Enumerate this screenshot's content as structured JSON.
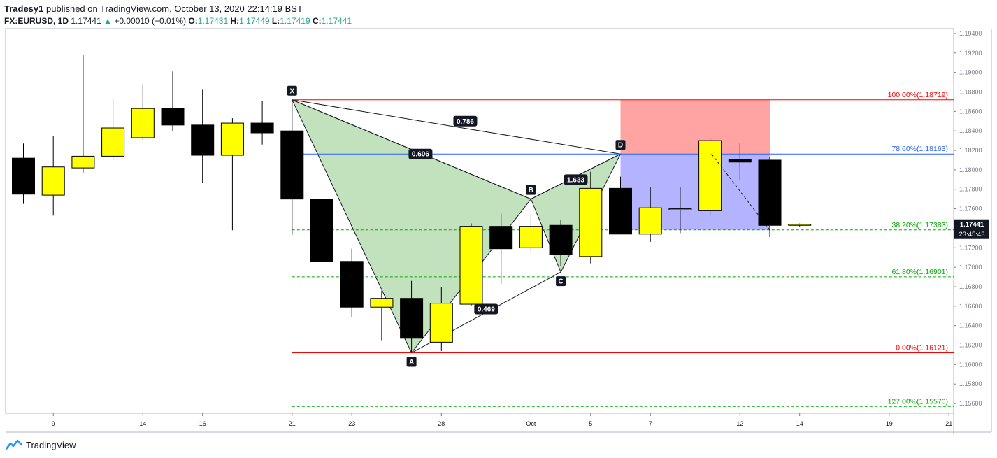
{
  "header": {
    "author": "Tradesy1",
    "published_text": "published on TradingView.com, October 13, 2020 22:14:19 BST",
    "symbol": "FX:EURUSD, 1D",
    "last": "1.17441",
    "change_icon": "triangle-up-icon",
    "change": "+0.00010 (+0.01%)",
    "o_label": "O:",
    "o_value": "1.17431",
    "h_label": "H:",
    "h_value": "1.17449",
    "l_label": "L:",
    "l_value": "1.17419",
    "c_label": "C:",
    "c_value": "1.17441"
  },
  "footer": {
    "brand": "TradingView",
    "logo_icon": "tradingview-logo-icon"
  },
  "colors": {
    "bull": "#ffff00",
    "bear": "#000000",
    "pattern_fill": "#a8d5a2",
    "fib_red": "#ff0000",
    "fib_blue": "#2962ff",
    "fib_green": "#00aa00",
    "stop_zone": "#ff9999",
    "target_zone": "#8080ff"
  },
  "chart_data": {
    "type": "candlestick",
    "symbol": "FX:EURUSD",
    "interval": "1D",
    "ylim": [
      1.155,
      1.1945
    ],
    "y_ticks": [
      "1.15600",
      "1.15800",
      "1.16000",
      "1.16200",
      "1.16400",
      "1.16600",
      "1.16800",
      "1.17000",
      "1.17200",
      "1.17400",
      "1.17600",
      "1.17800",
      "1.18000",
      "1.18200",
      "1.18400",
      "1.18600",
      "1.18800",
      "1.19000",
      "1.19200",
      "1.19400"
    ],
    "x_ticks": [
      {
        "label": "9",
        "i": 1
      },
      {
        "label": "14",
        "i": 4
      },
      {
        "label": "16",
        "i": 6
      },
      {
        "label": "21",
        "i": 9
      },
      {
        "label": "23",
        "i": 11
      },
      {
        "label": "28",
        "i": 14
      },
      {
        "label": "Oct",
        "i": 17
      },
      {
        "label": "5",
        "i": 19
      },
      {
        "label": "7",
        "i": 21
      },
      {
        "label": "12",
        "i": 24
      },
      {
        "label": "14",
        "i": 26
      },
      {
        "label": "19",
        "i": 29
      },
      {
        "label": "21",
        "i": 31
      }
    ],
    "candles": [
      {
        "o": 1.1812,
        "h": 1.1827,
        "l": 1.1765,
        "c": 1.1775
      },
      {
        "o": 1.1774,
        "h": 1.1835,
        "l": 1.1753,
        "c": 1.1803
      },
      {
        "o": 1.1802,
        "h": 1.1918,
        "l": 1.1797,
        "c": 1.1814
      },
      {
        "o": 1.1814,
        "h": 1.1873,
        "l": 1.181,
        "c": 1.1843
      },
      {
        "o": 1.1833,
        "h": 1.1888,
        "l": 1.1831,
        "c": 1.1863
      },
      {
        "o": 1.1863,
        "h": 1.1901,
        "l": 1.184,
        "c": 1.1846
      },
      {
        "o": 1.1846,
        "h": 1.1883,
        "l": 1.1787,
        "c": 1.1815
      },
      {
        "o": 1.1815,
        "h": 1.1853,
        "l": 1.1738,
        "c": 1.1848
      },
      {
        "o": 1.1848,
        "h": 1.1871,
        "l": 1.1826,
        "c": 1.1838
      },
      {
        "o": 1.184,
        "h": 1.1872,
        "l": 1.1733,
        "c": 1.177
      },
      {
        "o": 1.177,
        "h": 1.1775,
        "l": 1.169,
        "c": 1.1706
      },
      {
        "o": 1.1706,
        "h": 1.1719,
        "l": 1.1649,
        "c": 1.1659
      },
      {
        "o": 1.1659,
        "h": 1.1676,
        "l": 1.1625,
        "c": 1.1668
      },
      {
        "o": 1.1668,
        "h": 1.1686,
        "l": 1.1612,
        "c": 1.1627
      },
      {
        "o": 1.1623,
        "h": 1.168,
        "l": 1.1614,
        "c": 1.1663
      },
      {
        "o": 1.1662,
        "h": 1.1745,
        "l": 1.166,
        "c": 1.1742
      },
      {
        "o": 1.1742,
        "h": 1.1755,
        "l": 1.1683,
        "c": 1.1719
      },
      {
        "o": 1.172,
        "h": 1.1753,
        "l": 1.1715,
        "c": 1.1742
      },
      {
        "o": 1.1743,
        "h": 1.1749,
        "l": 1.1701,
        "c": 1.1713
      },
      {
        "o": 1.1711,
        "h": 1.1798,
        "l": 1.1704,
        "c": 1.1781
      },
      {
        "o": 1.1781,
        "h": 1.1793,
        "l": 1.1734,
        "c": 1.1734
      },
      {
        "o": 1.1734,
        "h": 1.1782,
        "l": 1.1726,
        "c": 1.1761
      },
      {
        "o": 1.1759,
        "h": 1.1782,
        "l": 1.1735,
        "c": 1.176
      },
      {
        "o": 1.1758,
        "h": 1.1832,
        "l": 1.1753,
        "c": 1.183
      },
      {
        "o": 1.1811,
        "h": 1.1827,
        "l": 1.179,
        "c": 1.1808
      },
      {
        "o": 1.181,
        "h": 1.1813,
        "l": 1.1731,
        "c": 1.1743
      },
      {
        "o": 1.17431,
        "h": 1.17449,
        "l": 1.17419,
        "c": 1.17441
      }
    ],
    "harmonic": {
      "points": [
        {
          "label": "X",
          "i": 9,
          "price": 1.18719
        },
        {
          "label": "A",
          "i": 13,
          "price": 1.16121
        },
        {
          "label": "B",
          "i": 17,
          "price": 1.177
        },
        {
          "label": "C",
          "i": 18,
          "price": 1.1695
        },
        {
          "label": "D",
          "i": 20,
          "price": 1.18163
        }
      ],
      "ratios": [
        {
          "label": "0.606",
          "i": 13.3,
          "price": 1.18163
        },
        {
          "label": "0.786",
          "i": 14.8,
          "price": 1.185
        },
        {
          "label": "1.633",
          "i": 18.5,
          "price": 1.179
        },
        {
          "label": "0.469",
          "i": 15.5,
          "price": 1.1657
        }
      ]
    },
    "fib_levels": [
      {
        "label": "100.00%(1.18719)",
        "price": 1.18719,
        "color": "#ff0000",
        "style": "solid"
      },
      {
        "label": "78.60%(1.18163)",
        "price": 1.18163,
        "color": "#2962ff",
        "style": "solid"
      },
      {
        "label": "38.20%(1.17383)",
        "price": 1.17383,
        "color": "#00aa00",
        "style": "dashed"
      },
      {
        "label": "61.80%(1.16901)",
        "price": 1.16901,
        "color": "#00aa00",
        "style": "dashed"
      },
      {
        "label": "0.00%(1.16121)",
        "price": 1.16121,
        "color": "#ff0000",
        "style": "solid"
      },
      {
        "label": "127.00%(1.15570)",
        "price": 1.1557,
        "color": "#00aa00",
        "style": "dashed"
      }
    ],
    "position": {
      "i_start": 20,
      "i_end": 25,
      "entry": 1.18163,
      "stop": 1.18719,
      "target": 1.17383
    },
    "price_label": "1.17441",
    "countdown_label": "23:45:43"
  }
}
